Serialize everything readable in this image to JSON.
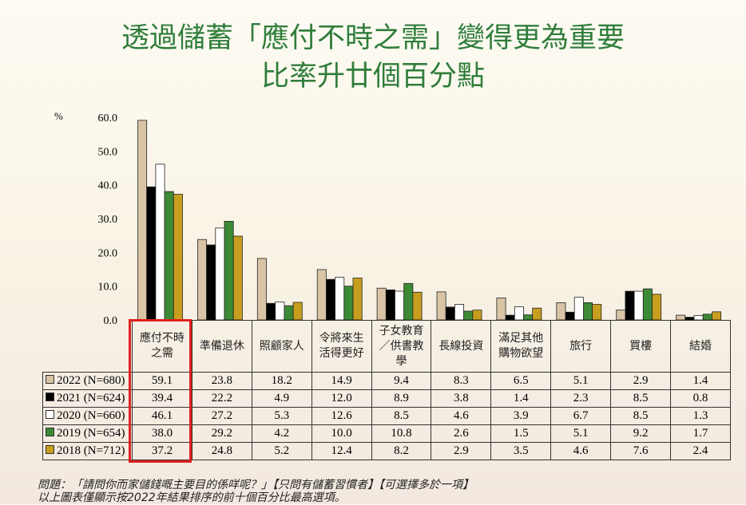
{
  "title_line1": "透過儲蓄「應付不時之需」變得更為重要",
  "title_line2": "比率升廿個百分點",
  "chart_data": {
    "type": "bar",
    "ylabel": "%",
    "ylim": [
      0,
      60
    ],
    "yticks": [
      "60.0",
      "50.0",
      "40.0",
      "30.0",
      "20.0",
      "10.0",
      "0.0"
    ],
    "categories": [
      "應付不時之需",
      "準備退休",
      "照顧家人",
      "令將來生活得更好",
      "子女教育／供書教學",
      "長線投資",
      "滿足其他購物欲望",
      "旅行",
      "買樓",
      "結婚"
    ],
    "category_labels": [
      [
        "應付不時",
        "之需"
      ],
      [
        "準備退休"
      ],
      [
        "照顧家人"
      ],
      [
        "令將來生",
        "活得更好"
      ],
      [
        "子女教育",
        "／供書教",
        "學"
      ],
      [
        "長線投資"
      ],
      [
        "滿足其他",
        "購物欲望"
      ],
      [
        "旅行"
      ],
      [
        "買樓"
      ],
      [
        "結婚"
      ]
    ],
    "series": [
      {
        "name": "2022 (N=680)",
        "color": "#d9c4a6",
        "values": [
          59.1,
          23.8,
          18.2,
          14.9,
          9.4,
          8.3,
          6.5,
          5.1,
          2.9,
          1.4
        ]
      },
      {
        "name": "2021 (N=624)",
        "color": "#000000",
        "values": [
          39.4,
          22.2,
          4.9,
          12.0,
          8.9,
          3.8,
          1.4,
          2.3,
          8.5,
          0.8
        ]
      },
      {
        "name": "2020 (N=660)",
        "color": "#ffffff",
        "values": [
          46.1,
          27.2,
          5.3,
          12.6,
          8.5,
          4.6,
          3.9,
          6.7,
          8.5,
          1.3
        ]
      },
      {
        "name": "2019 (N=654)",
        "color": "#3d8a36",
        "values": [
          38.0,
          29.2,
          4.2,
          10.0,
          10.8,
          2.6,
          1.5,
          5.1,
          9.2,
          1.7
        ]
      },
      {
        "name": "2018 (N=712)",
        "color": "#c89e1e",
        "values": [
          37.2,
          24.8,
          5.2,
          12.4,
          8.2,
          2.9,
          3.5,
          4.6,
          7.6,
          2.4
        ]
      }
    ],
    "highlight_category": "應付不時之需",
    "highlight_color": "#e02020",
    "legend": "table-left",
    "grid": false
  },
  "notes": [
    "問題：「請問你而家儲錢嘅主要目的係咩呢？」【只問有儲蓄習慣者】【可選擇多於一項】",
    "以上圖表僅顯示按2022年結果排序的前十個百分比最高選項。"
  ]
}
